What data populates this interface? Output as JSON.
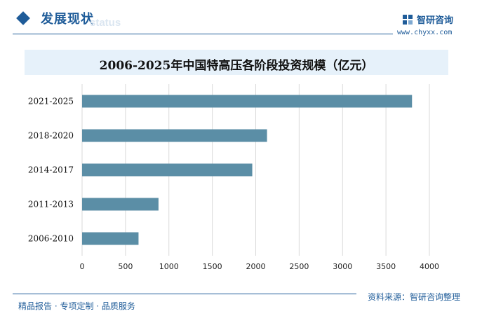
{
  "header": {
    "section_title": "发展现状",
    "section_subtitle": "status",
    "brand_name": "智研咨询",
    "brand_url": "www.chyxx.com",
    "colors": {
      "primary": "#1f5c99",
      "bar": "#5b8ea6",
      "title_bg": "#e6f1fa"
    }
  },
  "chart_data": {
    "type": "bar",
    "orientation": "horizontal",
    "title": "2006-2025年中国特高压各阶段投资规模（亿元）",
    "categories": [
      "2021-2025",
      "2018-2020",
      "2014-2017",
      "2011-2013",
      "2006-2010"
    ],
    "values": [
      3800,
      2130,
      1960,
      880,
      650
    ],
    "xlim": [
      0,
      4000
    ],
    "xticks": [
      0,
      500,
      1000,
      1500,
      2000,
      2500,
      3000,
      3500,
      4000
    ],
    "xlabel": "",
    "ylabel": "",
    "grid": "vertical"
  },
  "footer": {
    "tagline": "精品报告 · 专项定制 · 品质服务",
    "source": "资料来源：智研咨询整理"
  }
}
